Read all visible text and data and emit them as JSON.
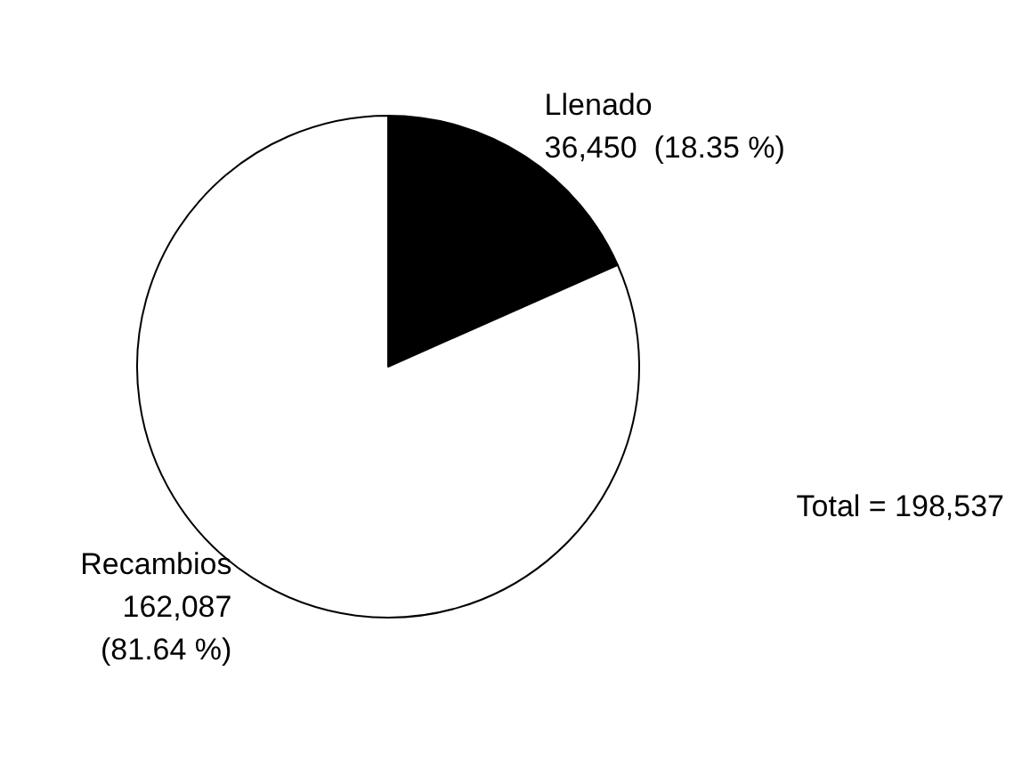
{
  "chart_data": {
    "type": "pie",
    "categories": [
      "Llenado",
      "Recambios"
    ],
    "values": [
      36450,
      162087
    ],
    "colors": [
      "#000000",
      "#ffffff"
    ],
    "value_labels": [
      "36,450  (18.35 %)",
      "162,087 (81.64 %)"
    ],
    "annotations": [
      "Total = 198,537"
    ],
    "legend": false
  }
}
